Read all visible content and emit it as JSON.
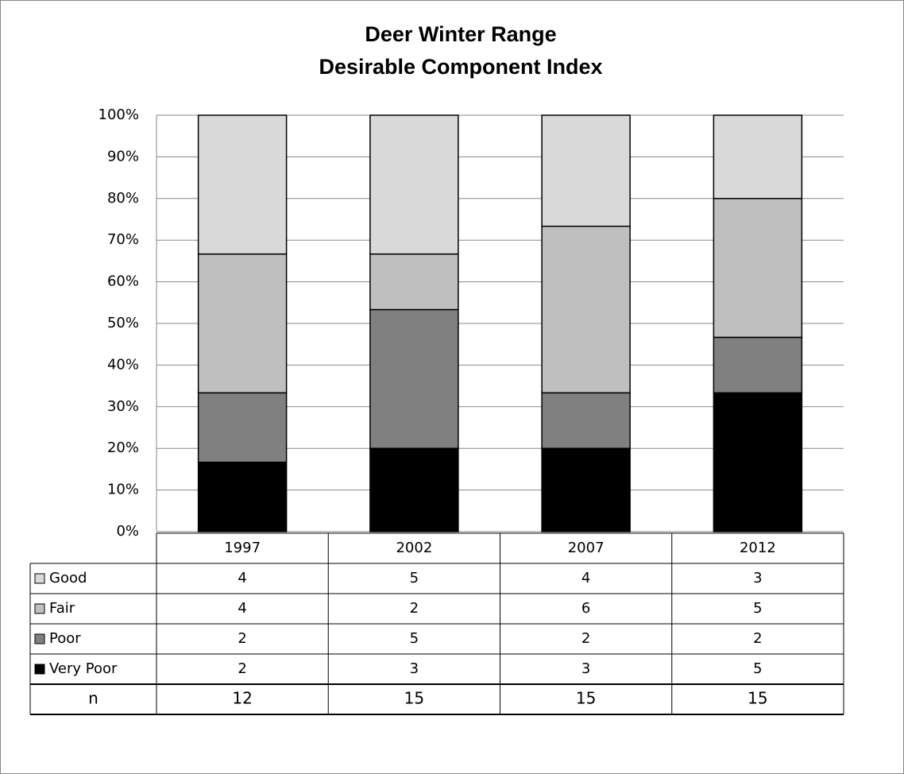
{
  "chart_data": {
    "type": "percent_stacked_bar",
    "title": [
      "Deer Winter Range",
      "Desirable Component Index"
    ],
    "categories": [
      "1997",
      "2002",
      "2007",
      "2012"
    ],
    "series": [
      {
        "name": "Good",
        "color": "#d9d9d9",
        "values": [
          4,
          5,
          4,
          3
        ]
      },
      {
        "name": "Fair",
        "color": "#bfbfbf",
        "values": [
          4,
          2,
          6,
          5
        ]
      },
      {
        "name": "Poor",
        "color": "#808080",
        "values": [
          2,
          5,
          2,
          2
        ]
      },
      {
        "name": "Very Poor",
        "color": "#000000",
        "values": [
          2,
          3,
          3,
          5
        ]
      }
    ],
    "totals_label": "n",
    "totals": [
      12,
      15,
      15,
      15
    ],
    "ylim": [
      0,
      100
    ],
    "yticks": [
      {
        "value": 0,
        "label": "0%"
      },
      {
        "value": 10,
        "label": "10%"
      },
      {
        "value": 20,
        "label": "20%"
      },
      {
        "value": 30,
        "label": "30%"
      },
      {
        "value": 40,
        "label": "40%"
      },
      {
        "value": 50,
        "label": "50%"
      },
      {
        "value": 60,
        "label": "60%"
      },
      {
        "value": 70,
        "label": "70%"
      },
      {
        "value": 80,
        "label": "80%"
      },
      {
        "value": 90,
        "label": "90%"
      },
      {
        "value": 100,
        "label": "100%"
      }
    ],
    "grid": true
  }
}
